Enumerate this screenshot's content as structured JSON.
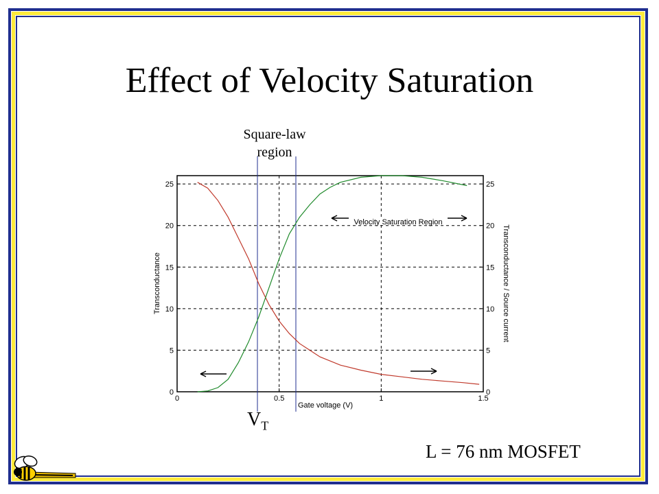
{
  "slide": {
    "title": "Effect of Velocity Saturation",
    "square_law": [
      "Square-law",
      "region"
    ],
    "vt_main": "V",
    "vt_sub": "T",
    "device_label": "L = 76 nm MOSFET",
    "colors": {
      "frame_blue": "#1f2e8f",
      "frame_yellow": "#ffeb3b"
    }
  },
  "chart_data": {
    "type": "line",
    "xlabel": "Gate voltage (V)",
    "ylabel_left": "Transconductance",
    "ylabel_right": "Transconductance / Source current",
    "xlim": [
      0,
      1.5
    ],
    "ylim": [
      0,
      26
    ],
    "xticks": [
      "0",
      "0.5",
      "1",
      "1.5"
    ],
    "yticks": [
      "0",
      "5",
      "10",
      "15",
      "20",
      "25"
    ],
    "grid": "dashed",
    "annotation": "Velocity Saturation Region",
    "series": [
      {
        "color": "#c0392b",
        "axis": "right",
        "x": [
          0.1,
          0.15,
          0.2,
          0.25,
          0.3,
          0.35,
          0.4,
          0.45,
          0.5,
          0.55,
          0.6,
          0.7,
          0.8,
          0.9,
          1.0,
          1.1,
          1.2,
          1.3,
          1.4,
          1.48
        ],
        "y": [
          25.2,
          24.5,
          23.0,
          21.0,
          18.5,
          16.0,
          13.0,
          10.5,
          8.5,
          7.0,
          5.8,
          4.2,
          3.2,
          2.6,
          2.1,
          1.8,
          1.5,
          1.3,
          1.1,
          0.9
        ]
      },
      {
        "color": "#1f8a2b",
        "axis": "left",
        "x": [
          0.1,
          0.15,
          0.2,
          0.25,
          0.3,
          0.35,
          0.4,
          0.45,
          0.5,
          0.55,
          0.6,
          0.65,
          0.7,
          0.75,
          0.8,
          0.9,
          1.0,
          1.1,
          1.2,
          1.3,
          1.42
        ],
        "y": [
          0.0,
          0.1,
          0.5,
          1.5,
          3.5,
          6.0,
          9.0,
          12.5,
          16.0,
          19.0,
          21.0,
          22.5,
          23.8,
          24.6,
          25.2,
          25.8,
          26.0,
          26.0,
          25.8,
          25.4,
          24.8
        ]
      }
    ]
  }
}
